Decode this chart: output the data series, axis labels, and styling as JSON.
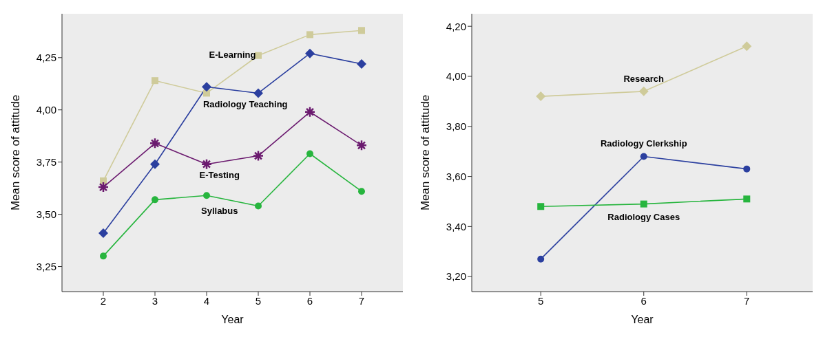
{
  "chart_data": [
    {
      "type": "line",
      "xlabel": "Year",
      "ylabel": "Mean score of attitude",
      "x": [
        2,
        3,
        4,
        5,
        6,
        7
      ],
      "xlim": [
        1.2,
        7.8
      ],
      "xticks": [
        2,
        3,
        4,
        5,
        6,
        7
      ],
      "ylim": [
        3.13,
        4.46
      ],
      "yticks": [
        {
          "value": 3.25,
          "label": "3,25"
        },
        {
          "value": 3.5,
          "label": "3,50"
        },
        {
          "value": 3.75,
          "label": "3,75"
        },
        {
          "value": 4.0,
          "label": "4,00"
        },
        {
          "value": 4.25,
          "label": "4,25"
        }
      ],
      "grid": false,
      "legend": false,
      "line_style": "solid",
      "series": [
        {
          "name": "E-Learning",
          "color": "#cfcb9a",
          "marker": "square",
          "values": [
            3.66,
            4.14,
            4.08,
            4.26,
            4.36,
            4.38
          ]
        },
        {
          "name": "Radiology Teaching",
          "color": "#2b3f9f",
          "marker": "diamond",
          "values": [
            3.41,
            3.74,
            4.11,
            4.08,
            4.27,
            4.22
          ]
        },
        {
          "name": "E-Testing",
          "color": "#6b1a6f",
          "marker": "cross",
          "values": [
            3.63,
            3.84,
            3.74,
            3.78,
            3.99,
            3.83
          ]
        },
        {
          "name": "Syllabus",
          "color": "#27b53e",
          "marker": "circle",
          "values": [
            3.3,
            3.57,
            3.59,
            3.54,
            3.79,
            3.61
          ]
        }
      ]
    },
    {
      "type": "line",
      "xlabel": "Year",
      "ylabel": "Mean score of attitude",
      "x": [
        5,
        6,
        7
      ],
      "xlim": [
        4.33,
        7.64
      ],
      "xticks": [
        5,
        6,
        7
      ],
      "ylim": [
        3.14,
        4.25
      ],
      "yticks": [
        {
          "value": 3.2,
          "label": "3,20"
        },
        {
          "value": 3.4,
          "label": "3,40"
        },
        {
          "value": 3.6,
          "label": "3,60"
        },
        {
          "value": 3.8,
          "label": "3,80"
        },
        {
          "value": 4.0,
          "label": "4,00"
        },
        {
          "value": 4.2,
          "label": "4,20"
        }
      ],
      "grid": false,
      "legend": false,
      "line_style": "solid",
      "series": [
        {
          "name": "Research",
          "color": "#cfcb9a",
          "marker": "diamond",
          "values": [
            3.92,
            3.94,
            4.12
          ]
        },
        {
          "name": "Radiology Clerkship",
          "color": "#2b3f9f",
          "marker": "circle",
          "values": [
            3.27,
            3.68,
            3.63
          ]
        },
        {
          "name": "Radiology Cases",
          "color": "#27b53e",
          "marker": "square",
          "values": [
            3.48,
            3.49,
            3.51
          ]
        }
      ]
    }
  ]
}
